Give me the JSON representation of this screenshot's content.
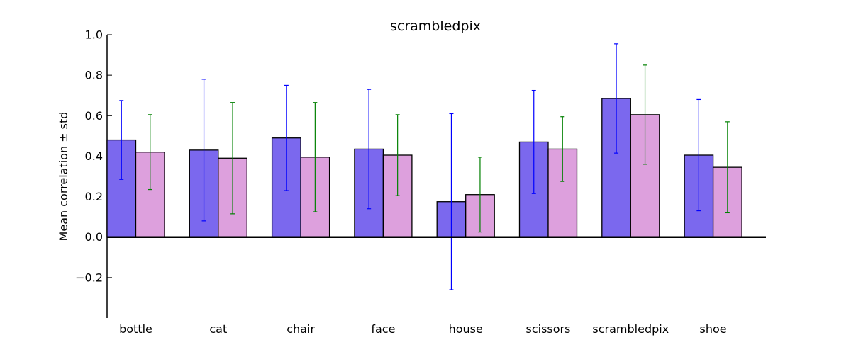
{
  "chart_data": {
    "type": "bar",
    "title": "scrambledpix",
    "xlabel": "",
    "ylabel": "Mean correlation ± std",
    "ylim": [
      -0.4,
      1.0
    ],
    "yticks": [
      -0.2,
      0.0,
      0.2,
      0.4,
      0.6,
      0.8,
      1.0
    ],
    "ytick_labels": [
      "−0.2",
      "0.0",
      "0.2",
      "0.4",
      "0.6",
      "0.8",
      "1.0"
    ],
    "categories": [
      "bottle",
      "cat",
      "chair",
      "face",
      "house",
      "scissors",
      "scrambledpix",
      "shoe"
    ],
    "series": [
      {
        "color": "#7b68ee",
        "error_color": "#0000ff",
        "values": [
          0.48,
          0.43,
          0.49,
          0.435,
          0.175,
          0.47,
          0.685,
          0.405
        ],
        "errors": [
          0.195,
          0.35,
          0.26,
          0.295,
          0.435,
          0.255,
          0.27,
          0.275
        ]
      },
      {
        "color": "#dda0dd",
        "error_color": "#008000",
        "values": [
          0.42,
          0.39,
          0.395,
          0.405,
          0.21,
          0.435,
          0.605,
          0.345
        ],
        "errors": [
          0.185,
          0.275,
          0.27,
          0.2,
          0.185,
          0.16,
          0.245,
          0.225
        ]
      }
    ],
    "grid": false,
    "legend": "none"
  }
}
